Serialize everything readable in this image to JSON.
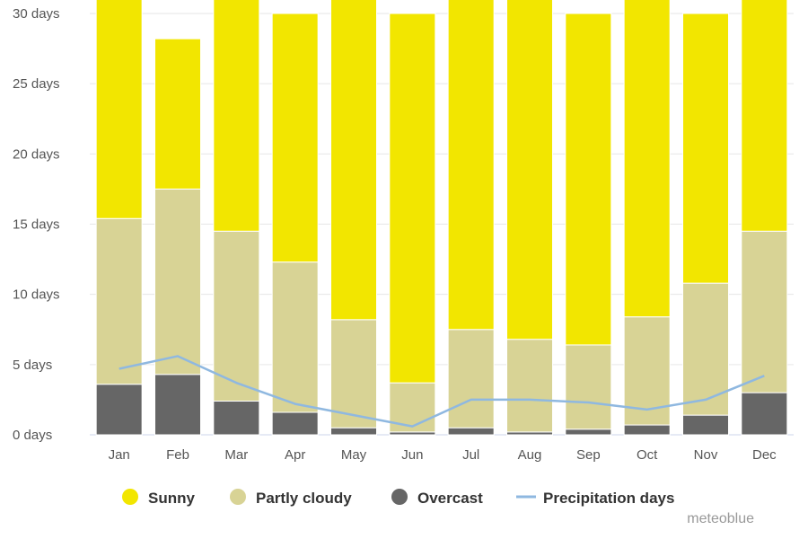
{
  "chart_data": {
    "type": "bar",
    "stacked": true,
    "categories": [
      "Jan",
      "Feb",
      "Mar",
      "Apr",
      "May",
      "Jun",
      "Jul",
      "Aug",
      "Sep",
      "Oct",
      "Nov",
      "Dec"
    ],
    "series": [
      {
        "name": "Overcast",
        "kind": "bar",
        "color": "#666666",
        "values": [
          3.6,
          4.3,
          2.4,
          1.6,
          0.5,
          0.2,
          0.5,
          0.2,
          0.4,
          0.7,
          1.4,
          3.0
        ]
      },
      {
        "name": "Partly cloudy",
        "kind": "bar",
        "color": "#d8d395",
        "values": [
          11.8,
          13.2,
          12.1,
          10.7,
          7.7,
          3.5,
          7.0,
          6.6,
          6.0,
          7.7,
          9.4,
          11.5
        ]
      },
      {
        "name": "Sunny",
        "kind": "bar",
        "color": "#f2e600",
        "values": [
          15.6,
          10.7,
          16.5,
          17.7,
          22.8,
          26.3,
          23.5,
          24.2,
          23.6,
          22.6,
          19.2,
          16.5
        ]
      },
      {
        "name": "Precipitation days",
        "kind": "line",
        "color": "#8fb8e0",
        "values": [
          4.7,
          5.6,
          3.7,
          2.2,
          1.4,
          0.6,
          2.5,
          2.5,
          2.3,
          1.8,
          2.5,
          4.2
        ]
      }
    ],
    "y_tick_labels": [
      "0 days",
      "5 days",
      "10 days",
      "15 days",
      "20 days",
      "25 days",
      "30 days"
    ],
    "y_ticks": [
      0,
      5,
      10,
      15,
      20,
      25,
      30
    ],
    "ylim": [
      0,
      30
    ],
    "grid": true,
    "legend_position": "bottom",
    "legend_order": [
      "Sunny",
      "Partly cloudy",
      "Overcast",
      "Precipitation days"
    ]
  },
  "watermark": "meteoblue"
}
